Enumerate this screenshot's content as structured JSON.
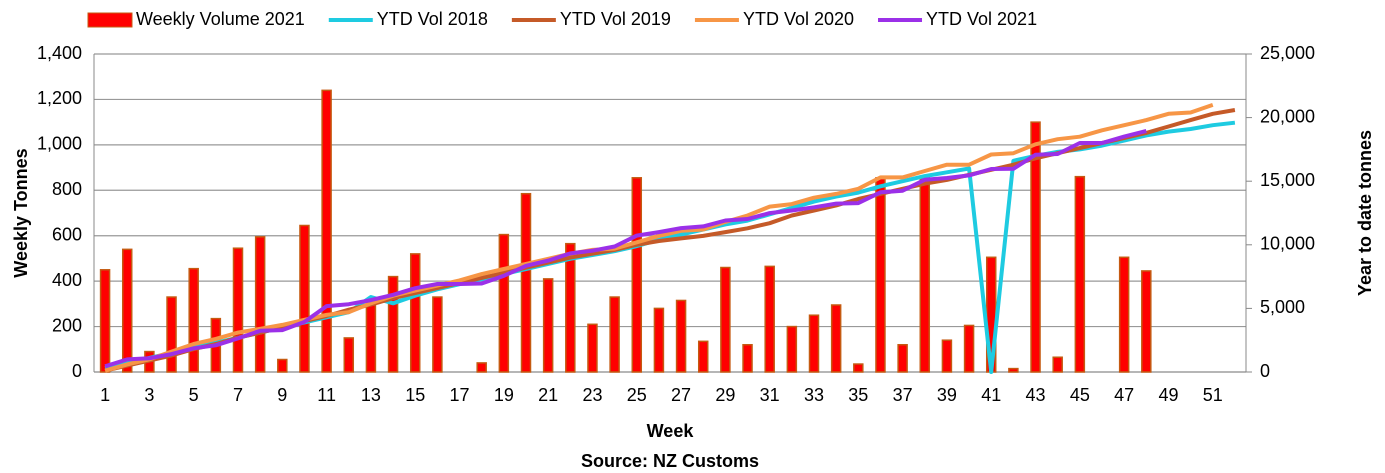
{
  "chart_data": {
    "type": "combo",
    "legend": "top",
    "xlabel": "Week",
    "ylabel": "Weekly Tonnes",
    "y2label": "Year to date tonnes",
    "source": "Source: NZ Customs",
    "categories": [
      1,
      null,
      3,
      null,
      5,
      null,
      7,
      null,
      9,
      null,
      11,
      null,
      13,
      null,
      15,
      null,
      17,
      null,
      19,
      null,
      21,
      null,
      23,
      null,
      25,
      null,
      27,
      null,
      29,
      null,
      31,
      null,
      33,
      null,
      35,
      null,
      37,
      null,
      39,
      null,
      41,
      null,
      43,
      null,
      45,
      null,
      47,
      null,
      49,
      null,
      51,
      null
    ],
    "ylim": [
      0,
      1400
    ],
    "yticks": [
      0,
      200,
      400,
      600,
      800,
      {
        "value": 1000,
        "label": "1,000"
      },
      {
        "value": 1200,
        "label": "1,200"
      },
      {
        "value": 1400,
        "label": "1,400"
      }
    ],
    "y2lim": [
      0,
      25000
    ],
    "y2ticks": [
      0,
      {
        "value": 5000,
        "label": "5,000"
      },
      {
        "value": 10000,
        "label": "10,000"
      },
      {
        "value": 15000,
        "label": "15,000"
      },
      {
        "value": 20000,
        "label": "20,000"
      },
      {
        "value": 25000,
        "label": "25,000"
      }
    ],
    "grid": true,
    "series": [
      {
        "name": "Weekly Volume 2021",
        "type": "bar",
        "color": "#ff0000",
        "edge": "#c55a11",
        "values": [
          450,
          540,
          90,
          330,
          455,
          235,
          545,
          595,
          55,
          645,
          1240,
          150,
          320,
          420,
          520,
          330,
          0,
          40,
          605,
          785,
          410,
          565,
          210,
          330,
          855,
          280,
          315,
          135,
          460,
          120,
          465,
          200,
          250,
          295,
          35,
          855,
          120,
          860,
          140,
          205,
          505,
          15,
          1100,
          65,
          860,
          0,
          505,
          445,
          null,
          null,
          null,
          null
        ]
      },
      {
        "name": "YTD Vol 2018",
        "type": "line",
        "axis": "y2",
        "color": "#1ecbe1",
        "values": [
          300,
          700,
          1100,
          1500,
          1900,
          2300,
          2700,
          3100,
          3500,
          3900,
          4300,
          4700,
          5900,
          5400,
          6000,
          6500,
          6900,
          7300,
          7700,
          8100,
          8500,
          8900,
          9200,
          9500,
          9900,
          10400,
          10800,
          11200,
          11600,
          11900,
          12400,
          12900,
          13400,
          13800,
          14100,
          14600,
          15000,
          15400,
          15700,
          16000,
          0,
          16600,
          17000,
          17300,
          17500,
          17800,
          18200,
          18600,
          18900,
          19100,
          19400,
          19600
        ]
      },
      {
        "name": "YTD Vol 2019",
        "type": "line",
        "axis": "y2",
        "color": "#c55a28",
        "values": [
          100,
          500,
          900,
          1300,
          1800,
          2200,
          2700,
          3100,
          3500,
          4000,
          4400,
          4900,
          5300,
          5800,
          6200,
          6600,
          7000,
          7400,
          7800,
          8200,
          8600,
          9000,
          9300,
          9600,
          10000,
          10300,
          10500,
          10700,
          11000,
          11300,
          11700,
          12300,
          12700,
          13100,
          13600,
          14000,
          14400,
          14800,
          15100,
          15500,
          15900,
          16300,
          16800,
          17200,
          17600,
          18000,
          18400,
          18800,
          19300,
          19800,
          20300,
          20600
        ]
      },
      {
        "name": "YTD Vol 2020",
        "type": "line",
        "axis": "y2",
        "color": "#f79646",
        "values": [
          100,
          600,
          1000,
          1600,
          2200,
          2600,
          3100,
          3400,
          3700,
          4100,
          4500,
          4700,
          5400,
          6000,
          6400,
          6800,
          7200,
          7700,
          8100,
          8500,
          8900,
          9300,
          9600,
          9700,
          10200,
          10700,
          11100,
          11200,
          11800,
          12300,
          13000,
          13200,
          13700,
          14000,
          14400,
          15300,
          15300,
          15800,
          16300,
          16300,
          17100,
          17200,
          17900,
          18300,
          18500,
          19000,
          19400,
          19800,
          20300,
          20400,
          21000,
          null
        ]
      },
      {
        "name": "YTD Vol 2021",
        "type": "line",
        "axis": "y2",
        "color": "#9b30e8",
        "values": [
          450,
          990,
          1080,
          1410,
          1865,
          2100,
          2645,
          3240,
          3295,
          3940,
          5180,
          5330,
          5650,
          6070,
          6590,
          6920,
          6920,
          6960,
          7565,
          8350,
          8760,
          9325,
          9535,
          9865,
          10720,
          11000,
          11315,
          11450,
          11910,
          12030,
          12495,
          12695,
          12945,
          13240,
          13275,
          14130,
          14250,
          15110,
          15250,
          15455,
          15960,
          15975,
          17075,
          17140,
          18000,
          18000,
          18505,
          18950,
          null,
          null,
          null,
          null
        ]
      }
    ]
  }
}
